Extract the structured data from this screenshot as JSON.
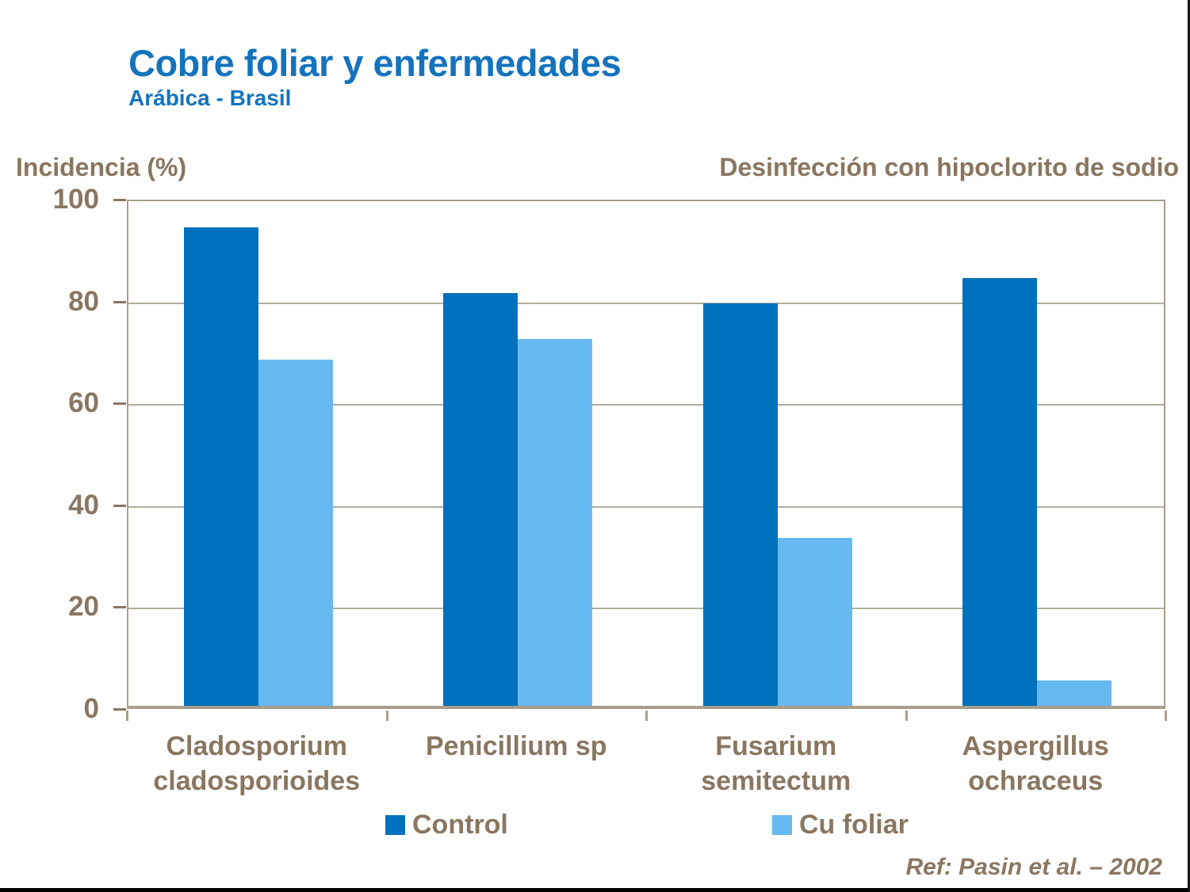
{
  "slide": {
    "title": "Cobre foliar y enfermedades",
    "subtitle": "Arábica - Brasil",
    "axis_label": "Incidencia (%)",
    "header_right": "Desinfección con hipoclorito de sodio",
    "reference": "Ref: Pasin et al. – 2002"
  },
  "colors": {
    "title_blue": "#1473BD",
    "text_brown": "#8A7660",
    "frame_tan": "#A89E8A",
    "gridline_tan": "#B5AC9B",
    "control_blue": "#0071BC",
    "cu_foliar_blue": "#66B9F0",
    "bottom_line_black": "#000000"
  },
  "chart_data": {
    "type": "bar",
    "title": "Cobre foliar y enfermedades",
    "subtitle": "Arábica - Brasil",
    "annotation": "Desinfección con hipoclorito de sodio",
    "xlabel": "",
    "ylabel": "Incidencia (%)",
    "categories": [
      "Cladosporium cladosporioides",
      "Penicillium sp",
      "Fusarium semitectum",
      "Aspergillus ochraceus"
    ],
    "category_lines": [
      [
        "Cladosporium",
        "cladosporioides"
      ],
      [
        "Penicillium sp"
      ],
      [
        "Fusarium",
        "semitectum"
      ],
      [
        "Aspergillus",
        "ochraceus"
      ]
    ],
    "series": [
      {
        "name": "Control",
        "color": "#0071BC",
        "values": [
          94,
          81,
          79,
          84
        ]
      },
      {
        "name": "Cu foliar",
        "color": "#66B9F0",
        "values": [
          68,
          72,
          33,
          5
        ]
      }
    ],
    "ylim": [
      0,
      100
    ],
    "yticks": [
      0,
      20,
      40,
      60,
      80,
      100
    ],
    "grid": true,
    "legend_position": "bottom",
    "reference": "Ref: Pasin et al. – 2002"
  }
}
